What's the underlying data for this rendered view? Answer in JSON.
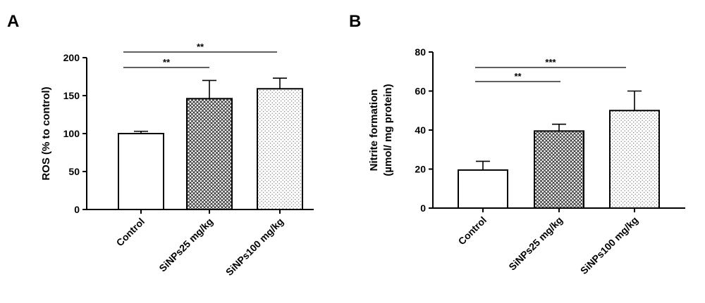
{
  "chart_data": [
    {
      "type": "bar",
      "panel_label": "A",
      "categories": [
        "Control",
        "SiNPs25 mg/kg",
        "SiNPs100 mg/kg"
      ],
      "values": [
        100,
        146,
        159
      ],
      "errors": [
        3,
        24,
        14
      ],
      "fills": [
        "none",
        "crosshatch",
        "dots"
      ],
      "ylabel": "ROS (% to control)",
      "ylim": [
        0,
        200
      ],
      "yticks": [
        "0",
        "50",
        "100",
        "150",
        "200"
      ],
      "significance": [
        {
          "from": 0,
          "to": 1,
          "text": "**"
        },
        {
          "from": 0,
          "to": 2,
          "text": "**"
        }
      ]
    },
    {
      "type": "bar",
      "panel_label": "B",
      "categories": [
        "Control",
        "SiNPs25 mg/kg",
        "SiNPs100 mg/kg"
      ],
      "values": [
        19.5,
        39.5,
        50
      ],
      "errors": [
        4.5,
        3.5,
        10
      ],
      "fills": [
        "none",
        "crosshatch",
        "dots"
      ],
      "ylabel_lines": [
        "Nitrite formation",
        "(µmol/ mg protein)"
      ],
      "ylim": [
        0,
        80
      ],
      "yticks": [
        "0",
        "20",
        "40",
        "60",
        "80"
      ],
      "significance": [
        {
          "from": 0,
          "to": 1,
          "text": "**"
        },
        {
          "from": 0,
          "to": 2,
          "text": "***"
        }
      ]
    }
  ]
}
